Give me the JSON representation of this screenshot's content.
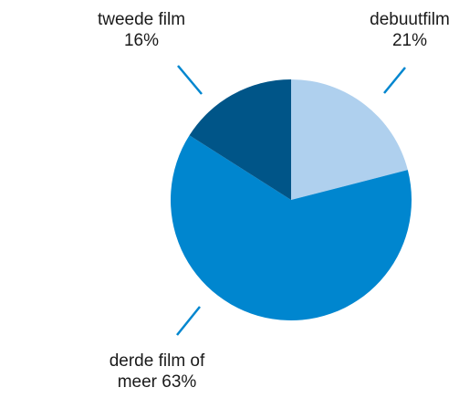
{
  "chart_data": {
    "type": "pie",
    "title": "",
    "slices": [
      {
        "label_lines": [
          "debuutfilm",
          "21%"
        ],
        "value": 21,
        "color": "#afd0ee"
      },
      {
        "label_lines": [
          "derde film of",
          "meer 63%"
        ],
        "value": 63,
        "color": "#0086cf"
      },
      {
        "label_lines": [
          "tweede film",
          "16%"
        ],
        "value": 16,
        "color": "#005588"
      }
    ],
    "leader_color": "#0086cf",
    "start_angle_deg": 0,
    "direction": "clockwise"
  }
}
